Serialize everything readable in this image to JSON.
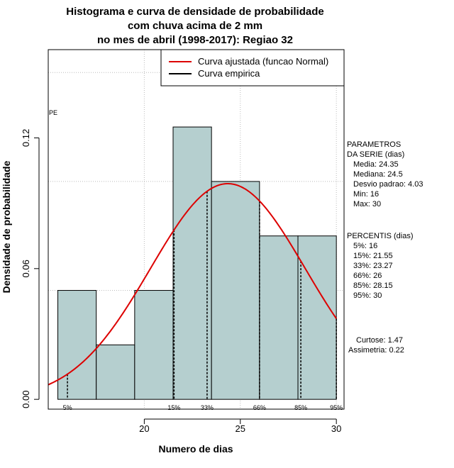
{
  "chart_data": {
    "type": "bar",
    "title": [
      "Histograma e curva de densidade de probabilidade",
      "com chuva acima de 2 mm",
      "no mes de abril (1998-2017): Regiao 32"
    ],
    "xlabel": "Numero de dias",
    "ylabel": "Densidade de probabilidade",
    "xlim": [
      15,
      30.4
    ],
    "ylim": [
      -0.0045,
      0.1605
    ],
    "x_ticks": [
      20,
      25,
      30
    ],
    "y_ticks": [
      0.0,
      0.06,
      0.12
    ],
    "y_tick_labels": [
      "0.00",
      "0.06",
      "0.12"
    ],
    "grid": true,
    "grid_x": [
      20,
      25,
      30
    ],
    "grid_y": [
      0.05,
      0.1,
      0.15
    ],
    "colors": {
      "bars": "#b5cfcf",
      "fitted_curve": "#dd0000",
      "empirical": "#000000",
      "grid": "#bbbbbb"
    },
    "bins": [
      {
        "start": 15.5,
        "end": 17.5,
        "density": 0.05
      },
      {
        "start": 17.5,
        "end": 19.5,
        "density": 0.025
      },
      {
        "start": 19.5,
        "end": 21.5,
        "density": 0.05
      },
      {
        "start": 21.5,
        "end": 23.5,
        "density": 0.125
      },
      {
        "start": 23.5,
        "end": 26.0,
        "density": 0.1
      },
      {
        "start": 26.0,
        "end": 28.0,
        "density": 0.075
      },
      {
        "start": 28.0,
        "end": 30.0,
        "density": 0.075
      }
    ],
    "fitted_normal": {
      "mean": 24.35,
      "sd": 4.03,
      "x_range": [
        15,
        30
      ]
    },
    "percentile_lines": [
      {
        "label": "5%",
        "x": 16
      },
      {
        "label": "15%",
        "x": 21.55
      },
      {
        "label": "33%",
        "x": 23.27
      },
      {
        "label": "66%",
        "x": 26
      },
      {
        "label": "85%",
        "x": 28.15
      },
      {
        "label": "95%",
        "x": 30
      }
    ],
    "legend": {
      "placement": "top-right",
      "entries": [
        {
          "label": "Curva ajustada (funcao Normal)",
          "color": "#dd0000"
        },
        {
          "label": "Curva empirica",
          "color": "#000000"
        }
      ]
    },
    "corner_label": "PE",
    "parametros": {
      "heading": [
        "PARAMETROS",
        "DA SERIE (dias)"
      ],
      "lines": [
        "Media: 24.35",
        "Mediana: 24.5",
        "Desvio padrao: 4.03",
        "Min: 16",
        "Max: 30"
      ]
    },
    "percentis": {
      "heading": "PERCENTIS (dias)",
      "lines": [
        "5%: 16",
        "15%: 21.55",
        "33%: 23.27",
        "66%: 26",
        "85%: 28.15",
        "95%: 30"
      ]
    },
    "shape": [
      "Curtose: 1.47",
      "Assimetria: 0.22"
    ]
  }
}
